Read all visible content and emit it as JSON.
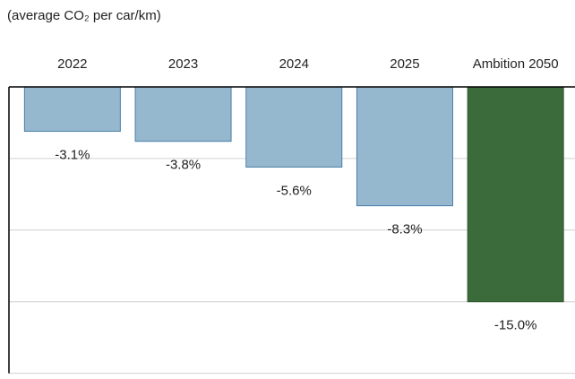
{
  "chart_data": {
    "type": "bar",
    "subtitle": "(average CO₂ per car/km)",
    "categories": [
      "2022",
      "2023",
      "2024",
      "2025",
      "Ambition 2050"
    ],
    "values": [
      -3.1,
      -3.8,
      -5.6,
      -8.3,
      -15.0
    ],
    "value_labels": [
      "-3.1%",
      "-3.8%",
      "-5.6%",
      "-8.3%",
      "-15.0%"
    ],
    "colors": [
      "#96b8cf",
      "#96b8cf",
      "#96b8cf",
      "#96b8cf",
      "#3b6b3b"
    ],
    "ylim": [
      -20.4,
      0
    ],
    "yticks": [
      0,
      -5,
      -10,
      -15,
      -20
    ],
    "grid": true
  }
}
